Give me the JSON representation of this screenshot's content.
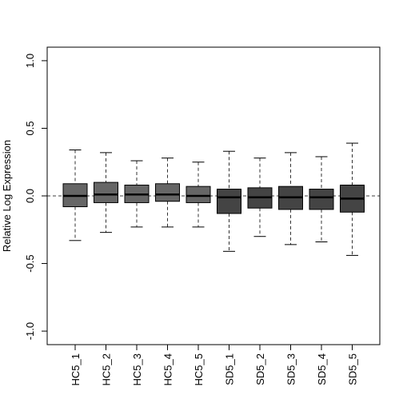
{
  "chart_data": {
    "type": "boxplot",
    "title": "",
    "xlabel": "",
    "ylabel": "Relative Log Expression",
    "ylim": [
      -1.1,
      1.1
    ],
    "yticks": [
      -1.0,
      -0.5,
      0.0,
      0.5,
      1.0
    ],
    "ytick_labels": [
      "-1.0",
      "-0.5",
      "0.0",
      "0.5",
      "1.0"
    ],
    "reference_line": 0.0,
    "grid": false,
    "legend": "none",
    "colors": {
      "hc_box": "#666666",
      "sd_box": "#444444",
      "median": "#000000",
      "whisker": "#000000",
      "background": "#ffffff"
    },
    "categories": [
      "HC5_1",
      "HC5_2",
      "HC5_3",
      "HC5_4",
      "HC5_5",
      "SD5_1",
      "SD5_2",
      "SD5_3",
      "SD5_4",
      "SD5_5"
    ],
    "boxes": [
      {
        "label": "HC5_1",
        "group": "HC",
        "whisker_low": -0.33,
        "q1": -0.08,
        "median": 0.0,
        "q3": 0.09,
        "whisker_high": 0.34
      },
      {
        "label": "HC5_2",
        "group": "HC",
        "whisker_low": -0.27,
        "q1": -0.05,
        "median": 0.01,
        "q3": 0.1,
        "whisker_high": 0.32
      },
      {
        "label": "HC5_3",
        "group": "HC",
        "whisker_low": -0.23,
        "q1": -0.05,
        "median": 0.01,
        "q3": 0.08,
        "whisker_high": 0.26
      },
      {
        "label": "HC5_4",
        "group": "HC",
        "whisker_low": -0.23,
        "q1": -0.04,
        "median": 0.01,
        "q3": 0.09,
        "whisker_high": 0.28
      },
      {
        "label": "HC5_5",
        "group": "HC",
        "whisker_low": -0.23,
        "q1": -0.05,
        "median": 0.0,
        "q3": 0.07,
        "whisker_high": 0.25
      },
      {
        "label": "SD5_1",
        "group": "SD",
        "whisker_low": -0.41,
        "q1": -0.13,
        "median": -0.01,
        "q3": 0.05,
        "whisker_high": 0.33
      },
      {
        "label": "SD5_2",
        "group": "SD",
        "whisker_low": -0.3,
        "q1": -0.09,
        "median": -0.01,
        "q3": 0.06,
        "whisker_high": 0.28
      },
      {
        "label": "SD5_3",
        "group": "SD",
        "whisker_low": -0.36,
        "q1": -0.1,
        "median": -0.01,
        "q3": 0.07,
        "whisker_high": 0.32
      },
      {
        "label": "SD5_4",
        "group": "SD",
        "whisker_low": -0.34,
        "q1": -0.1,
        "median": -0.01,
        "q3": 0.05,
        "whisker_high": 0.29
      },
      {
        "label": "SD5_5",
        "group": "SD",
        "whisker_low": -0.44,
        "q1": -0.12,
        "median": -0.02,
        "q3": 0.08,
        "whisker_high": 0.39
      }
    ]
  }
}
